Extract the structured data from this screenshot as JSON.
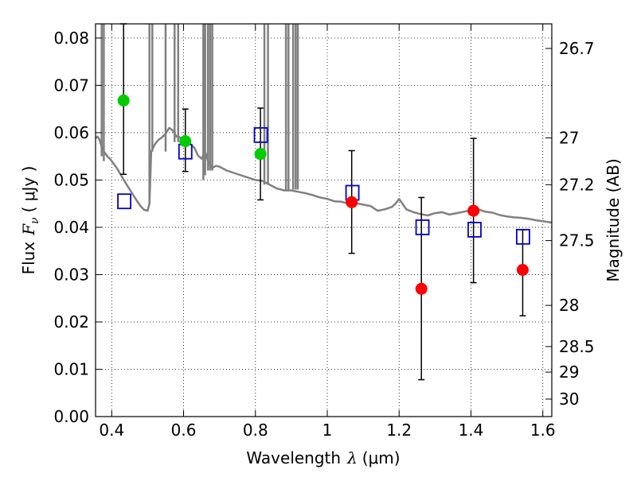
{
  "chart_data": {
    "type": "scatter",
    "xlabel": "Wavelength",
    "xlabel_symbol": "λ",
    "xlabel_unit": "(μm)",
    "ylabel": "Flux",
    "ylabel_symbol": "F",
    "ylabel_sub": "ν",
    "ylabel_unit": "( μJy )",
    "ylabel_right": "Magnitude (AB)",
    "xlim": [
      0.355,
      1.625
    ],
    "ylim": [
      0,
      0.083
    ],
    "grid": true,
    "x_ticks": [
      0.4,
      0.6,
      0.8,
      1.0,
      1.2,
      1.4,
      1.6
    ],
    "x_tick_labels": [
      "0.4",
      "0.6",
      "0.8",
      "1",
      "1.2",
      "1.4",
      "1.6"
    ],
    "y_ticks": [
      0,
      0.01,
      0.02,
      0.03,
      0.04,
      0.05,
      0.06,
      0.07,
      0.08
    ],
    "y_tick_labels": [
      "0.00",
      "0.01",
      "0.02",
      "0.03",
      "0.04",
      "0.05",
      "0.06",
      "0.07",
      "0.08"
    ],
    "right_axis": {
      "ticks": [
        {
          "label": "26.7",
          "flux": 0.0778
        },
        {
          "label": "27",
          "flux": 0.0589
        },
        {
          "label": "27.2",
          "flux": 0.049
        },
        {
          "label": "27.5",
          "flux": 0.0372
        },
        {
          "label": "28",
          "flux": 0.0235
        },
        {
          "label": "28.5",
          "flux": 0.0148
        },
        {
          "label": "29",
          "flux": 0.0094
        },
        {
          "label": "30",
          "flux": 0.0037
        }
      ]
    },
    "series": [
      {
        "type": "line",
        "color": "#808080",
        "x": [
          0.355,
          0.36,
          0.365,
          0.37,
          0.375,
          0.38,
          0.385,
          0.39,
          0.395,
          0.4,
          0.41,
          0.42,
          0.43,
          0.44,
          0.45,
          0.46,
          0.47,
          0.48,
          0.49,
          0.5,
          0.505,
          0.51,
          0.52,
          0.53,
          0.54,
          0.55,
          0.56,
          0.57,
          0.58,
          0.59,
          0.6,
          0.61,
          0.62,
          0.63,
          0.64,
          0.65,
          0.66,
          0.67,
          0.68,
          0.69,
          0.7,
          0.72,
          0.74,
          0.76,
          0.78,
          0.8,
          0.82,
          0.84,
          0.86,
          0.88,
          0.9,
          0.92,
          0.94,
          0.96,
          0.98,
          1.0,
          1.02,
          1.04,
          1.06,
          1.08,
          1.1,
          1.12,
          1.14,
          1.16,
          1.18,
          1.19,
          1.2,
          1.22,
          1.24,
          1.26,
          1.28,
          1.3,
          1.32,
          1.34,
          1.36,
          1.38,
          1.4,
          1.42,
          1.44,
          1.46,
          1.48,
          1.5,
          1.52,
          1.54,
          1.56,
          1.58,
          1.6,
          1.625
        ],
        "y": [
          0.0588,
          0.0592,
          0.0587,
          0.0575,
          0.0565,
          0.0558,
          0.0553,
          0.0548,
          0.0545,
          0.054,
          0.053,
          0.0518,
          0.0505,
          0.0492,
          0.048,
          0.0468,
          0.0456,
          0.0445,
          0.0437,
          0.0435,
          0.045,
          0.056,
          0.0575,
          0.0585,
          0.059,
          0.0598,
          0.061,
          0.0605,
          0.0592,
          0.059,
          0.0585,
          0.058,
          0.0575,
          0.0568,
          0.0552,
          0.0545,
          0.056,
          0.0535,
          0.0525,
          0.053,
          0.0528,
          0.052,
          0.0515,
          0.051,
          0.0505,
          0.05,
          0.0498,
          0.049,
          0.0482,
          0.0478,
          0.0478,
          0.0475,
          0.0472,
          0.0468,
          0.0463,
          0.046,
          0.0455,
          0.0454,
          0.045,
          0.0451,
          0.0448,
          0.0445,
          0.0435,
          0.0438,
          0.0443,
          0.045,
          0.046,
          0.0438,
          0.0432,
          0.0428,
          0.0425,
          0.043,
          0.0432,
          0.0427,
          0.043,
          0.0433,
          0.0436,
          0.0438,
          0.0433,
          0.0431,
          0.0426,
          0.0423,
          0.0421,
          0.042,
          0.0418,
          0.0415,
          0.0413,
          0.041
        ]
      }
    ],
    "spikes": [
      {
        "x": 0.372,
        "ymin": 0.055
      },
      {
        "x": 0.378,
        "ymin": 0.054
      },
      {
        "x": 0.505,
        "ymin": 0.045
      },
      {
        "x": 0.513,
        "ymin": 0.056
      },
      {
        "x": 0.55,
        "ymin": 0.056
      },
      {
        "x": 0.575,
        "ymin": 0.058
      },
      {
        "x": 0.585,
        "ymin": 0.058
      },
      {
        "x": 0.655,
        "ymin": 0.05
      },
      {
        "x": 0.66,
        "ymin": 0.051
      },
      {
        "x": 0.668,
        "ymin": 0.052
      },
      {
        "x": 0.674,
        "ymin": 0.052
      },
      {
        "x": 0.68,
        "ymin": 0.052
      },
      {
        "x": 0.825,
        "ymin": 0.049
      },
      {
        "x": 0.835,
        "ymin": 0.049
      },
      {
        "x": 0.885,
        "ymin": 0.048
      },
      {
        "x": 0.892,
        "ymin": 0.048
      },
      {
        "x": 0.905,
        "ymin": 0.048
      },
      {
        "x": 0.912,
        "ymin": 0.048
      },
      {
        "x": 0.918,
        "ymin": 0.048
      }
    ],
    "squares": {
      "color": "#0000cc",
      "x": [
        0.435,
        0.605,
        0.815,
        1.07,
        1.265,
        1.41,
        1.545
      ],
      "y": [
        0.0455,
        0.056,
        0.0595,
        0.0473,
        0.04,
        0.0395,
        0.038
      ]
    },
    "green_points": {
      "color": "#00cc00",
      "x": [
        0.433,
        0.605,
        0.814
      ],
      "y": [
        0.0668,
        0.0582,
        0.0555
      ],
      "yerr_low": [
        0.0512,
        0.0518,
        0.0458
      ],
      "yerr_high": [
        0.083,
        0.065,
        0.0652
      ]
    },
    "red_points": {
      "color": "#ff0000",
      "x": [
        1.068,
        1.262,
        1.407,
        1.544
      ],
      "y": [
        0.0453,
        0.027,
        0.0435,
        0.031
      ],
      "yerr_low": [
        0.0345,
        0.0078,
        0.0283,
        0.0213
      ],
      "yerr_high": [
        0.0562,
        0.0463,
        0.0588,
        0.0395
      ]
    }
  }
}
